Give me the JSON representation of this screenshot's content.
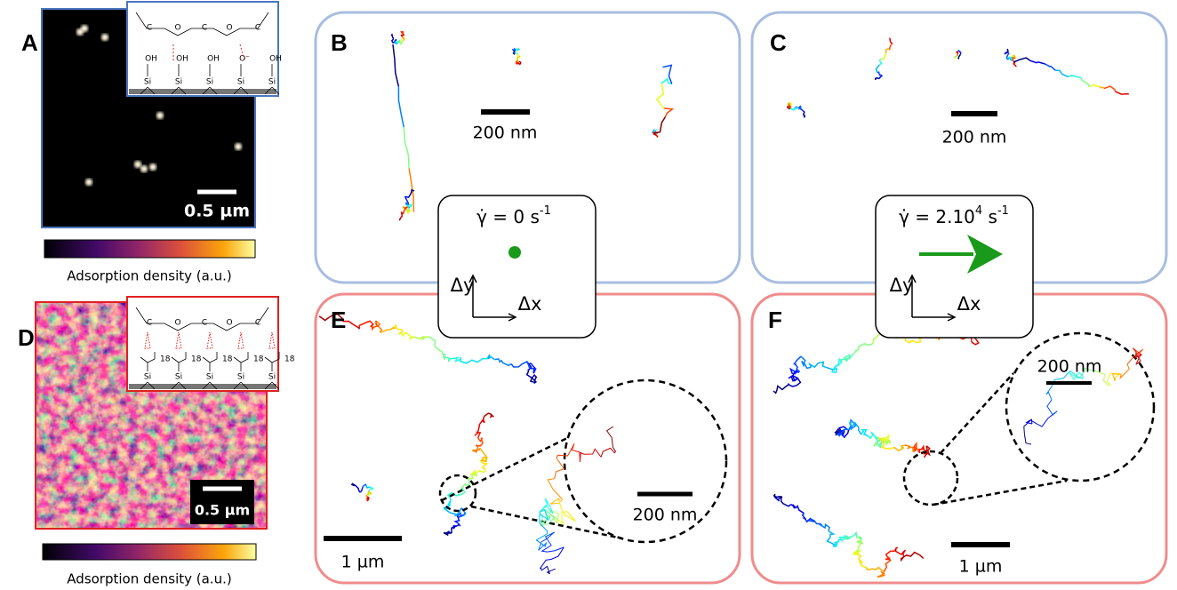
{
  "panel_a": {
    "label": "A",
    "scale_bar": "0.5 µm",
    "colorbar_label": "Adsorption density (a.u.)",
    "inset": {
      "chain": [
        "C",
        "O",
        "C",
        "O",
        "C"
      ],
      "groups": [
        "OH",
        "OH",
        "OH",
        "O⁻",
        "OH"
      ],
      "silicon": [
        "Si",
        "Si",
        "Si",
        "Si",
        "Si"
      ]
    }
  },
  "panel_d": {
    "label": "D",
    "scale_bar": "0.5 µm",
    "colorbar_label": "Adsorption density (a.u.)",
    "inset": {
      "chain": [
        "C",
        "O",
        "C",
        "O",
        "C"
      ],
      "chain_length": [
        "18",
        "18",
        "18",
        "18",
        "18"
      ],
      "silicon": [
        "Si",
        "Si",
        "Si",
        "Si",
        "Si"
      ]
    }
  },
  "panel_b": {
    "label": "B",
    "scale_bar": "200 nm"
  },
  "panel_c": {
    "label": "C",
    "scale_bar": "200 nm"
  },
  "panel_e": {
    "label": "E",
    "scale_bar": "1 µm",
    "zoom_scale_bar": "200 nm"
  },
  "panel_f": {
    "label": "F",
    "scale_bar": "1 µm",
    "zoom_scale_bar": "200 nm"
  },
  "shear_boxes": [
    {
      "rate": [
        "γ̇ = 0 s",
        "-1"
      ],
      "axis_y": "Δy",
      "axis_x": "Δx"
    },
    {
      "rate": [
        "γ̇ = 2.10",
        "4",
        " s",
        "-1"
      ],
      "axis_y": "Δy",
      "axis_x": "Δx"
    }
  ]
}
